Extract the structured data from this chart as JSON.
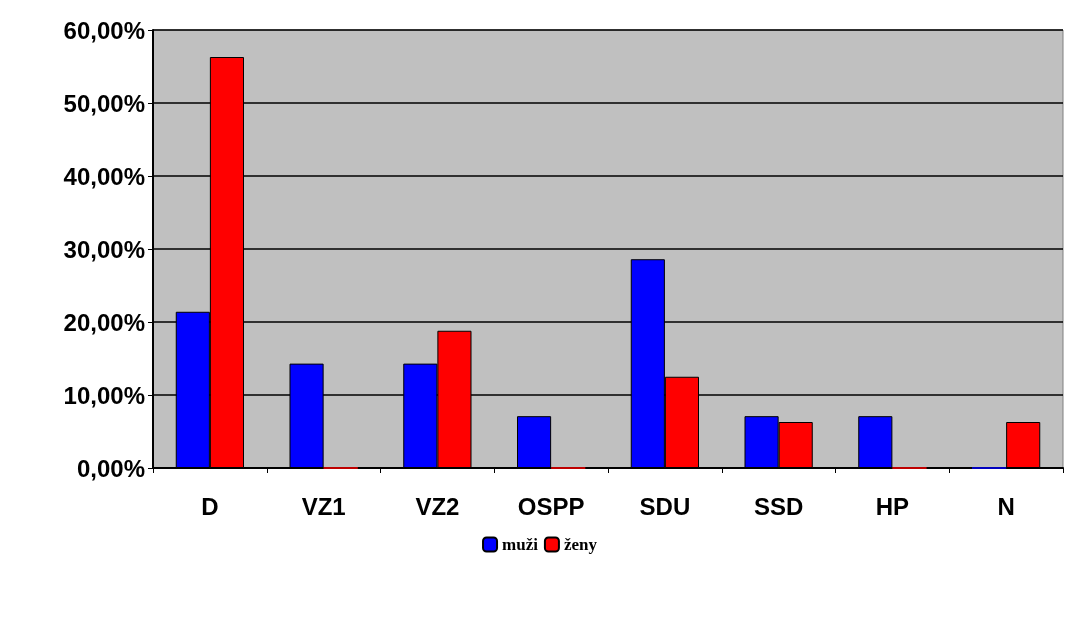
{
  "chart_data": {
    "type": "bar",
    "categories": [
      "D",
      "VZ1",
      "VZ2",
      "OSPP",
      "SDU",
      "SSD",
      "HP",
      "N"
    ],
    "series": [
      {
        "name": "muži",
        "color": "#0000ff",
        "values": [
          21.4,
          14.3,
          14.3,
          7.1,
          28.6,
          7.1,
          7.1,
          0
        ]
      },
      {
        "name": "ženy",
        "color": "#ff0000",
        "values": [
          56.3,
          0,
          18.8,
          0,
          12.5,
          6.3,
          0,
          6.3
        ]
      }
    ],
    "ylim": [
      0,
      60
    ],
    "yticks": [
      {
        "value": 0,
        "label": "0,00%"
      },
      {
        "value": 10,
        "label": "10,00%"
      },
      {
        "value": 20,
        "label": "20,00%"
      },
      {
        "value": 30,
        "label": "30,00%"
      },
      {
        "value": 40,
        "label": "40,00%"
      },
      {
        "value": 50,
        "label": "50,00%"
      },
      {
        "value": 60,
        "label": "60,00%"
      }
    ],
    "grid": "y",
    "legend": "bottom"
  }
}
